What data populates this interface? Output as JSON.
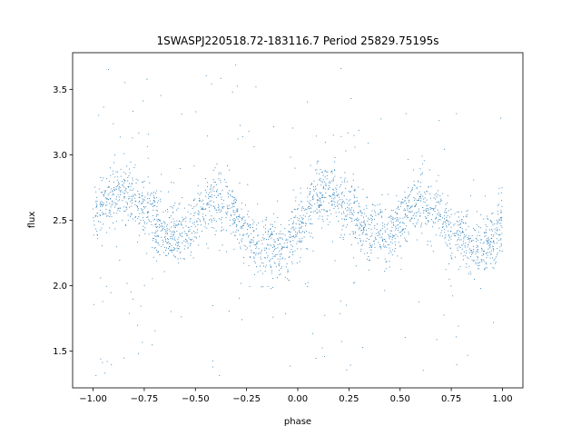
{
  "chart_data": {
    "type": "scatter",
    "title": "1SWASPJ220518.72-183116.7 Period 25829.75195s",
    "xlabel": "phase",
    "ylabel": "flux",
    "xlim": [
      -1.1,
      1.1
    ],
    "ylim": [
      1.22,
      3.78
    ],
    "xticks": [
      -1.0,
      -0.75,
      -0.5,
      -0.25,
      0.0,
      0.25,
      0.5,
      0.75,
      1.0
    ],
    "xtick_labels": [
      "−1.00",
      "−0.75",
      "−0.50",
      "−0.25",
      "0.00",
      "0.25",
      "0.50",
      "0.75",
      "1.00"
    ],
    "yticks": [
      1.5,
      2.0,
      2.5,
      3.0,
      3.5
    ],
    "ytick_labels": [
      "1.5",
      "2.0",
      "2.5",
      "3.0",
      "3.5"
    ],
    "grid": false,
    "legend": false,
    "marker_color": "#1f77b4",
    "series": [
      {
        "x_range": [
          -1.0,
          1.0
        ],
        "trend": {
          "x": [
            -1.0,
            -0.9,
            -0.85,
            -0.75,
            -0.65,
            -0.55,
            -0.5,
            -0.4,
            -0.35,
            -0.25,
            -0.15,
            -0.05,
            0.0,
            0.1,
            0.15,
            0.25,
            0.35,
            0.45,
            0.5,
            0.6,
            0.65,
            0.75,
            0.85,
            0.95,
            1.0
          ],
          "y": [
            2.55,
            2.68,
            2.72,
            2.6,
            2.42,
            2.4,
            2.5,
            2.65,
            2.62,
            2.42,
            2.28,
            2.3,
            2.45,
            2.67,
            2.72,
            2.6,
            2.42,
            2.4,
            2.5,
            2.66,
            2.62,
            2.42,
            2.28,
            2.32,
            2.45
          ]
        },
        "scatter_width": 0.12,
        "outlier_range": [
          1.3,
          3.7
        ]
      }
    ]
  }
}
